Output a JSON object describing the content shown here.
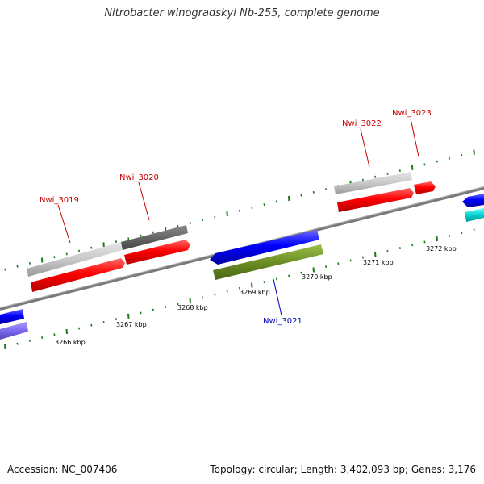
{
  "title": "Nitrobacter winogradskyi Nb-255, complete genome",
  "footer": {
    "accession": "Accession: NC_007406",
    "summary": "Topology: circular; Length: 3,402,093 bp; Genes: 3,176"
  },
  "genes": [
    {
      "name": "Nwi_3019",
      "strand": "forward",
      "color": "#ff0000",
      "label_color": "#cc0000"
    },
    {
      "name": "Nwi_3020",
      "strand": "forward",
      "color": "#ff0000",
      "label_color": "#cc0000"
    },
    {
      "name": "Nwi_3021",
      "strand": "reverse",
      "color": "#0000ff",
      "label_color": "#0000bb"
    },
    {
      "name": "Nwi_3022",
      "strand": "forward",
      "color": "#ff0000",
      "label_color": "#cc0000"
    },
    {
      "name": "Nwi_3023",
      "strand": "forward",
      "color": "#ff0000",
      "label_color": "#cc0000"
    }
  ],
  "scale_labels": [
    "3266 kbp",
    "3267 kbp",
    "3268 kbp",
    "3269 kbp",
    "3270 kbp",
    "3271 kbp",
    "3272 kbp"
  ],
  "colors": {
    "forward_gene": "#ff0000",
    "reverse_gene": "#0000ff",
    "tick": "#1a7a1a",
    "backbone": "#777777",
    "olive_feature": "#6b8e23",
    "cyan_feature": "#00cccc",
    "lavender_feature": "#7b68ee"
  }
}
